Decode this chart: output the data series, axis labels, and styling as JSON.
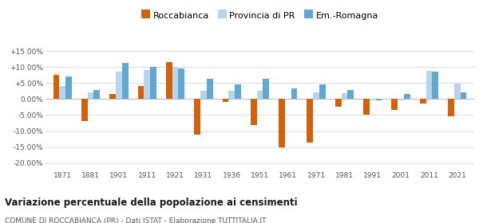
{
  "years": [
    1871,
    1881,
    1901,
    1911,
    1921,
    1931,
    1936,
    1951,
    1961,
    1971,
    1981,
    1991,
    2001,
    2011,
    2021
  ],
  "roccabianca": [
    7.5,
    -6.8,
    1.5,
    4.0,
    11.5,
    -11.0,
    -1.0,
    -8.0,
    -15.0,
    -13.5,
    -2.5,
    -5.0,
    -3.5,
    -1.5,
    -5.5
  ],
  "provincia_pr": [
    4.0,
    2.2,
    8.5,
    9.0,
    10.0,
    2.5,
    2.5,
    2.5,
    0.2,
    2.2,
    1.8,
    -0.3,
    -0.3,
    8.7,
    4.8
  ],
  "emilia_romagna": [
    7.0,
    2.8,
    11.2,
    10.0,
    9.5,
    6.2,
    4.5,
    6.2,
    3.2,
    4.6,
    2.8,
    -0.3,
    1.7,
    8.5,
    2.0
  ],
  "color_roccabianca": "#d4600a",
  "color_provincia": "#b8d4ea",
  "color_emilia": "#5fa8d3",
  "title": "Variazione percentuale della popolazione ai censimenti",
  "subtitle": "COMUNE DI ROCCABIANCA (PR) - Dati ISTAT - Elaborazione TUTTITALIA.IT",
  "ylim": [
    -22,
    17
  ],
  "yticks": [
    -20,
    -15,
    -10,
    -5,
    0,
    5,
    10,
    15
  ],
  "background_color": "#ffffff"
}
